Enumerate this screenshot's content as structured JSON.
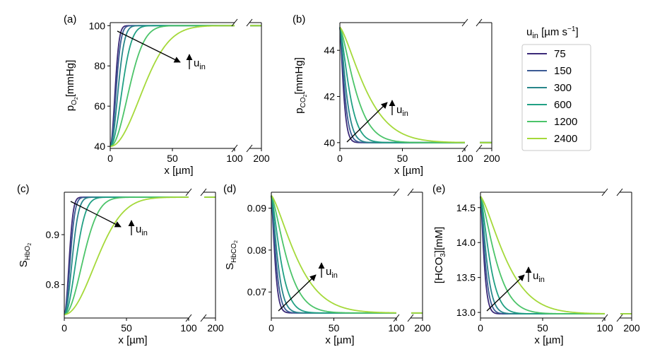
{
  "legend": {
    "title": "u",
    "title_sub": "in",
    "title_unit": " [µm s",
    "title_exp": "−1",
    "title_close": "]",
    "entries": [
      "75",
      "150",
      "300",
      "600",
      "1200",
      "2400"
    ]
  },
  "arrow_label": {
    "main": "u",
    "sub": "in"
  },
  "colors": [
    "#3b2a78",
    "#3b5a94",
    "#28868a",
    "#21a084",
    "#4cc46a",
    "#a5d93a"
  ],
  "chart_data": [
    {
      "id": "a",
      "panel_label": "(a)",
      "type": "line",
      "ylabel": {
        "main": "p",
        "sub": "O",
        "sub2": "2",
        "unit": "[mmHg]"
      },
      "xlabel": "x [µm]",
      "xlim": [
        0,
        100
      ],
      "x_break_value": 200,
      "ylim": [
        39,
        101.5
      ],
      "yticks": [
        40,
        60,
        80,
        100
      ],
      "xticks": [
        0,
        50,
        100
      ],
      "ytick_labels": [
        "40",
        "60",
        "80",
        "100"
      ],
      "xtick_labels": [
        "0",
        "50",
        "100"
      ],
      "break_tick_label": "200",
      "y_start": 40,
      "y_end": 100,
      "shape": "rise",
      "scales": [
        5,
        6,
        8,
        12,
        19,
        33
      ]
    },
    {
      "id": "b",
      "panel_label": "(b)",
      "type": "line",
      "ylabel": {
        "main": "p",
        "sub": "CO",
        "sub2": "2",
        "unit": "[mmHg]"
      },
      "xlabel": "x [µm]",
      "xlim": [
        0,
        100
      ],
      "x_break_value": 200,
      "ylim": [
        39.75,
        45.2
      ],
      "yticks": [
        40,
        42,
        44
      ],
      "xticks": [
        0,
        50,
        100
      ],
      "ytick_labels": [
        "40",
        "42",
        "44"
      ],
      "xtick_labels": [
        "0",
        "50",
        "100"
      ],
      "break_tick_label": "200",
      "y_start": 45,
      "y_end": 40,
      "shape": "decay",
      "scales": [
        3.5,
        4.5,
        6,
        9,
        15,
        25
      ]
    },
    {
      "id": "c",
      "panel_label": "(c)",
      "type": "line",
      "ylabel": {
        "main": "S",
        "sub": "HbO",
        "sub2": "2",
        "unit": ""
      },
      "xlabel": "x [µm]",
      "xlim": [
        0,
        100
      ],
      "x_break_value": 200,
      "ylim": [
        0.733,
        0.985
      ],
      "yticks": [
        0.8,
        0.9
      ],
      "xticks": [
        0,
        50,
        100
      ],
      "ytick_labels": [
        "0.8",
        "0.9"
      ],
      "xtick_labels": [
        "0",
        "50",
        "100"
      ],
      "break_tick_label": "200",
      "y_start": 0.74,
      "y_end": 0.975,
      "shape": "rise",
      "scales": [
        5,
        6,
        8,
        12,
        19,
        33
      ]
    },
    {
      "id": "d",
      "panel_label": "(d)",
      "type": "line",
      "ylabel": {
        "main": "S",
        "sub": "HbCO",
        "sub2": "2",
        "unit": ""
      },
      "xlabel": "x [µm]",
      "xlim": [
        0,
        100
      ],
      "x_break_value": 200,
      "ylim": [
        0.0638,
        0.0938
      ],
      "yticks": [
        0.07,
        0.08,
        0.09
      ],
      "xticks": [
        0,
        50,
        100
      ],
      "ytick_labels": [
        "0.07",
        "0.08",
        "0.09"
      ],
      "xtick_labels": [
        "0",
        "50",
        "100"
      ],
      "break_tick_label": "200",
      "y_start": 0.093,
      "y_end": 0.065,
      "shape": "decay",
      "scales": [
        3.5,
        4.5,
        6,
        9,
        15,
        25
      ]
    },
    {
      "id": "e",
      "panel_label": "(e)",
      "type": "line",
      "ylabel": {
        "main": "[HCO",
        "sub": "3",
        "sup": "−",
        "unit": "][mM]"
      },
      "xlabel": "x [µm]",
      "xlim": [
        0,
        100
      ],
      "x_break_value": 200,
      "ylim": [
        12.92,
        14.72
      ],
      "yticks": [
        13.0,
        13.5,
        14.0,
        14.5
      ],
      "xticks": [
        0,
        50,
        100
      ],
      "ytick_labels": [
        "13.0",
        "13.5",
        "14.0",
        "14.5"
      ],
      "xtick_labels": [
        "0",
        "50",
        "100"
      ],
      "break_tick_label": "200",
      "y_start": 14.66,
      "y_end": 12.98,
      "shape": "decay",
      "scales": [
        3.5,
        4.5,
        6,
        9,
        15,
        25
      ]
    }
  ]
}
